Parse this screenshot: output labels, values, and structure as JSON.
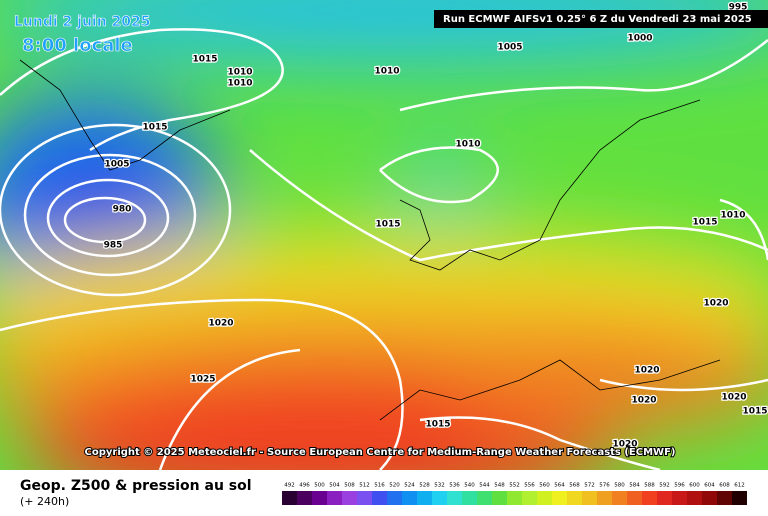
{
  "header": {
    "date": "Lundi 2 juin 2025",
    "time": "8:00 locale",
    "run": "Run ECMWF AIFSv1 0.25° 6 Z du Vendredi 23 mai 2025"
  },
  "isobar_labels": [
    995,
    1000,
    1005,
    1015,
    1010,
    1010,
    1010,
    1015,
    1005,
    980,
    985,
    1010,
    1015,
    1015,
    1010,
    1020,
    1020,
    1025,
    1020,
    1020,
    1020,
    1015,
    1015,
    1020
  ],
  "copyright": "Copyright © 2025 Meteociel.fr - Source European Centre for Medium-Range Weather Forecasts (ECMWF)",
  "footer": {
    "title": "Geop. Z500 & pression au sol",
    "lead": "(+ 240h)"
  },
  "scale": {
    "values": [
      492,
      496,
      500,
      504,
      508,
      512,
      516,
      520,
      524,
      528,
      532,
      536,
      540,
      544,
      548,
      552,
      556,
      560,
      564,
      568,
      572,
      576,
      580,
      584,
      588,
      592,
      596,
      600,
      604,
      608,
      612
    ],
    "colors": [
      "#2a0033",
      "#4b0060",
      "#6a0090",
      "#8a20c0",
      "#9a40e0",
      "#7a50f0",
      "#4050f0",
      "#2070f0",
      "#1090f0",
      "#10b0f0",
      "#20d0f0",
      "#30e0d0",
      "#30e0a0",
      "#40e070",
      "#60e040",
      "#90e830",
      "#b0f030",
      "#d0f020",
      "#f0f020",
      "#f0d820",
      "#f0c020",
      "#f0a020",
      "#f08020",
      "#f06020",
      "#f04020",
      "#e02820",
      "#c81818",
      "#b01010",
      "#900808",
      "#600404",
      "#200000"
    ]
  }
}
